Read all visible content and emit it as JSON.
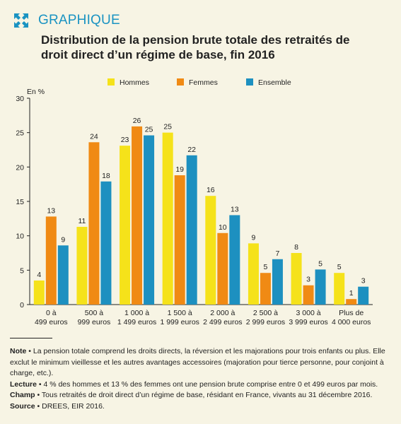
{
  "header": {
    "tag": "GRAPHIQUE",
    "title": "Distribution de la pension brute totale des retraités de droit direct d’un régime de base, fin 2016"
  },
  "colors": {
    "hommes": "#f5e21a",
    "femmes": "#f08a14",
    "ensemble": "#1d90c0",
    "accent": "#1a93c2",
    "background": "#f7f4e4"
  },
  "chart_data": {
    "type": "bar",
    "ylabel": "En %",
    "ylim": [
      0,
      30
    ],
    "yticks": [
      0,
      5,
      10,
      15,
      20,
      25,
      30
    ],
    "grid": false,
    "legend_position": "top",
    "categories": [
      [
        "0 à",
        "499 euros"
      ],
      [
        "500 à",
        "999 euros"
      ],
      [
        "1 000 à",
        "1 499 euros"
      ],
      [
        "1 500 à",
        "1 999 euros"
      ],
      [
        "2 000 à",
        "2 499 euros"
      ],
      [
        "2 500 à",
        "2 999 euros"
      ],
      [
        "3 000 à",
        "3 999 euros"
      ],
      [
        "Plus de",
        "4 000 euros"
      ]
    ],
    "series": [
      {
        "name": "Hommes",
        "color_key": "hommes",
        "values": [
          3.5,
          11.3,
          23.1,
          25.0,
          15.8,
          8.9,
          7.5,
          4.6
        ],
        "labels": [
          "4",
          "11",
          "23",
          "25",
          "16",
          "9",
          "8",
          "5"
        ]
      },
      {
        "name": "Femmes",
        "color_key": "femmes",
        "values": [
          12.8,
          23.6,
          25.9,
          18.8,
          10.4,
          4.6,
          2.8,
          0.8
        ],
        "labels": [
          "13",
          "24",
          "26",
          "19",
          "10",
          "5",
          "3",
          "1"
        ]
      },
      {
        "name": "Ensemble",
        "color_key": "ensemble",
        "values": [
          8.6,
          17.9,
          24.6,
          21.7,
          13.0,
          6.6,
          5.1,
          2.6
        ],
        "labels": [
          "9",
          "18",
          "25",
          "22",
          "13",
          "7",
          "5",
          "3"
        ]
      }
    ]
  },
  "notes": {
    "note_label": "Note",
    "note_text": " • La pension totale comprend les droits directs, la réversion et les majorations pour trois enfants ou plus. Elle exclut le minimum vieillesse et les autres avantages accessoires (majoration pour tierce personne, pour conjoint à charge, etc.).",
    "lecture_label": "Lecture",
    "lecture_text": " • 4 % des hommes et 13 % des femmes ont une pension brute comprise entre 0 et 499 euros par mois.",
    "champ_label": "Champ",
    "champ_text": " • Tous retraités de droit direct d’un régime de base, résidant en France, vivants au 31 décembre 2016.",
    "source_label": "Source",
    "source_text": " • DREES, EIR 2016."
  }
}
